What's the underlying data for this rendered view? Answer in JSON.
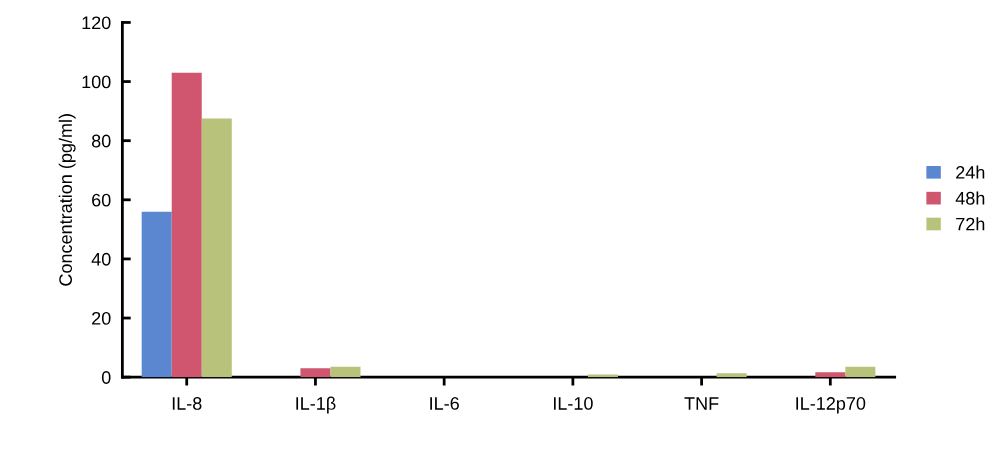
{
  "chart_data": {
    "type": "bar",
    "ylabel": "Concentration (pg/ml)",
    "categories": [
      "IL-8",
      "IL-1β",
      "IL-6",
      "IL-10",
      "TNF",
      "IL-12p70"
    ],
    "series": [
      {
        "name": "24h",
        "color": "#5b86d0",
        "values": [
          56,
          null,
          null,
          null,
          null,
          null
        ]
      },
      {
        "name": "48h",
        "color": "#d0566f",
        "values": [
          103,
          3,
          null,
          null,
          null,
          1.7
        ]
      },
      {
        "name": "72h",
        "color": "#b8c27a",
        "values": [
          87.5,
          3.5,
          null,
          0.9,
          1.3,
          3.5
        ]
      }
    ],
    "ylim": [
      0,
      120
    ],
    "yticks": [
      0,
      20,
      40,
      60,
      80,
      100,
      120
    ],
    "grid": false,
    "legend": "right"
  }
}
